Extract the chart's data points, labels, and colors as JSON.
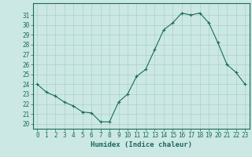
{
  "hours": [
    0,
    1,
    2,
    3,
    4,
    5,
    6,
    7,
    8,
    9,
    10,
    11,
    12,
    13,
    14,
    15,
    16,
    17,
    18,
    19,
    20,
    21,
    22,
    23
  ],
  "humidex": [
    24.0,
    23.2,
    22.8,
    22.2,
    21.8,
    21.2,
    21.1,
    20.2,
    20.2,
    22.2,
    23.0,
    24.8,
    25.5,
    27.5,
    29.5,
    30.2,
    31.2,
    31.0,
    31.2,
    30.2,
    28.2,
    26.0,
    25.2,
    24.0
  ],
  "bg_color": "#cce8e4",
  "grid_color": "#aacfcc",
  "line_color": "#1a6b5a",
  "marker": "+",
  "xlabel": "Humidex (Indice chaleur)",
  "ylim": [
    19.5,
    32.2
  ],
  "xlim": [
    -0.5,
    23.5
  ],
  "yticks": [
    20,
    21,
    22,
    23,
    24,
    25,
    26,
    27,
    28,
    29,
    30,
    31
  ],
  "xtick_labels": [
    "0",
    "1",
    "2",
    "3",
    "4",
    "5",
    "6",
    "7",
    "8",
    "9",
    "10",
    "11",
    "12",
    "13",
    "14",
    "15",
    "16",
    "17",
    "18",
    "19",
    "20",
    "21",
    "22",
    "23"
  ],
  "tick_fontsize": 5.5,
  "xlabel_fontsize": 6.5
}
